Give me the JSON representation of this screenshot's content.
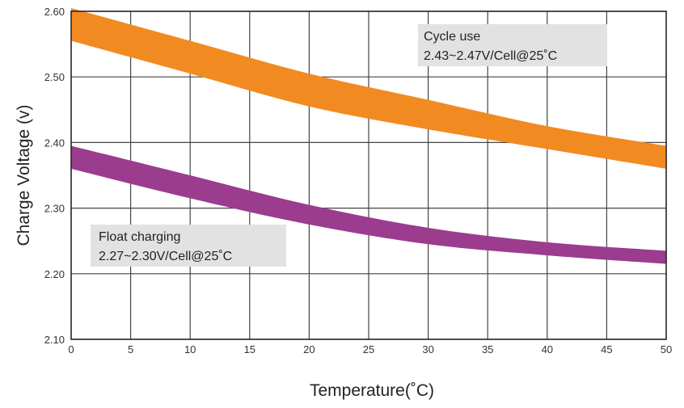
{
  "chart_data": {
    "type": "area",
    "title": "",
    "xlabel": "Temperature(˚C)",
    "ylabel": "Charge Voltage  (v)",
    "xlim": [
      0,
      50
    ],
    "ylim": [
      2.1,
      2.6
    ],
    "x_ticks": [
      "0",
      "5",
      "10",
      "15",
      "20",
      "25",
      "30",
      "35",
      "40",
      "45",
      "50"
    ],
    "y_ticks": [
      "2.10",
      "2.20",
      "2.30",
      "2.40",
      "2.50",
      "2.60"
    ],
    "grid": true,
    "series": [
      {
        "key": "cycle",
        "color": "#F28A22",
        "x": [
          0,
          10,
          20,
          30,
          40,
          50
        ],
        "upper": [
          2.605,
          2.555,
          2.505,
          2.465,
          2.425,
          2.395
        ],
        "lower": [
          2.555,
          2.505,
          2.455,
          2.42,
          2.39,
          2.36
        ]
      },
      {
        "key": "float",
        "color": "#9B3C8E",
        "x": [
          0,
          10,
          20,
          30,
          40,
          50
        ],
        "upper": [
          2.395,
          2.35,
          2.305,
          2.27,
          2.248,
          2.235
        ],
        "lower": [
          2.36,
          2.315,
          2.275,
          2.245,
          2.228,
          2.215
        ]
      }
    ],
    "annotations": [
      {
        "key": "cycle",
        "line1": "Cycle use",
        "line2": "2.43~2.47V/Cell@25˚C"
      },
      {
        "key": "float",
        "line1": "Float charging",
        "line2": "2.27~2.30V/Cell@25˚C"
      }
    ]
  }
}
